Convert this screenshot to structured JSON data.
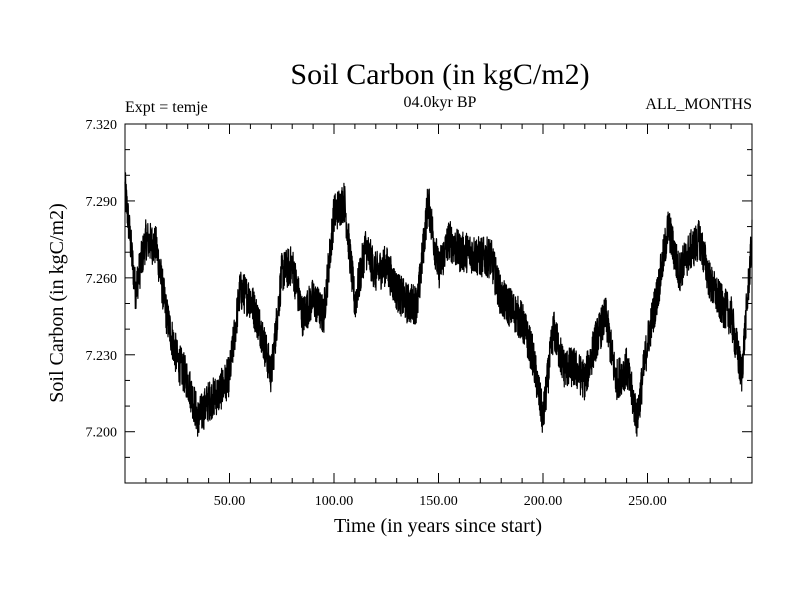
{
  "chart_data": {
    "type": "line",
    "title": "Soil Carbon (in kgC/m2)",
    "subtitle": "04.0kyr BP",
    "experiment_label": "Expt = temje",
    "period_label": "ALL_MONTHS",
    "xlabel": "Time (in years since start)",
    "ylabel": "Soil Carbon (in kgC/m2)",
    "xlim": [
      0,
      300
    ],
    "ylim": [
      7.18,
      7.32
    ],
    "x_ticks": [
      50,
      100,
      150,
      200,
      250
    ],
    "x_tick_labels": [
      "50.00",
      "100.00",
      "150.00",
      "200.00",
      "250.00"
    ],
    "y_ticks": [
      7.2,
      7.23,
      7.26,
      7.29,
      7.32
    ],
    "y_tick_labels": [
      "7.200",
      "7.230",
      "7.260",
      "7.290",
      "7.320"
    ],
    "grid": false,
    "series": [
      {
        "name": "Soil Carbon",
        "color": "#000000",
        "x": [
          0,
          5,
          10,
          15,
          20,
          25,
          30,
          35,
          40,
          45,
          50,
          55,
          60,
          65,
          70,
          75,
          80,
          85,
          90,
          95,
          100,
          105,
          110,
          115,
          120,
          125,
          130,
          135,
          140,
          145,
          150,
          155,
          160,
          165,
          170,
          175,
          180,
          185,
          190,
          195,
          200,
          205,
          210,
          215,
          220,
          225,
          230,
          235,
          240,
          245,
          250,
          255,
          260,
          265,
          270,
          275,
          280,
          285,
          290,
          295,
          300
        ],
        "values": [
          7.295,
          7.255,
          7.275,
          7.272,
          7.245,
          7.228,
          7.22,
          7.205,
          7.212,
          7.215,
          7.222,
          7.255,
          7.252,
          7.24,
          7.222,
          7.262,
          7.265,
          7.245,
          7.252,
          7.245,
          7.285,
          7.29,
          7.25,
          7.272,
          7.262,
          7.265,
          7.255,
          7.25,
          7.25,
          7.29,
          7.263,
          7.275,
          7.27,
          7.27,
          7.268,
          7.268,
          7.252,
          7.248,
          7.243,
          7.23,
          7.205,
          7.24,
          7.225,
          7.225,
          7.22,
          7.235,
          7.245,
          7.22,
          7.225,
          7.205,
          7.235,
          7.255,
          7.28,
          7.262,
          7.27,
          7.275,
          7.258,
          7.25,
          7.245,
          7.222,
          7.275
        ]
      }
    ]
  }
}
